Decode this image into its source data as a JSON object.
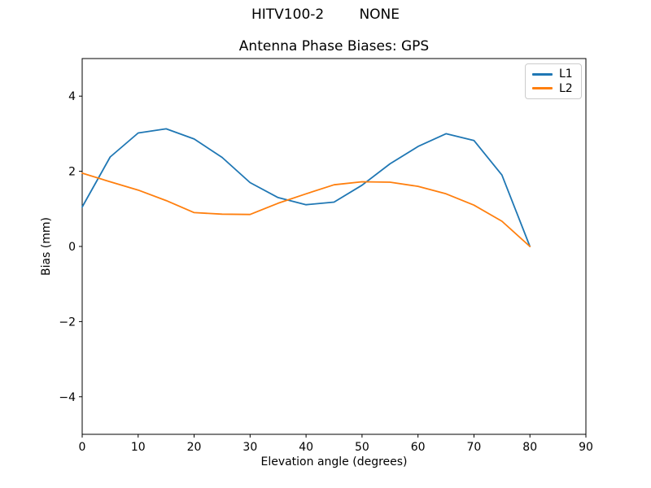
{
  "suptitle": "HITV100-2        NONE",
  "chart_data": {
    "type": "line",
    "title": "Antenna Phase Biases: GPS",
    "xlabel": "Elevation angle (degrees)",
    "ylabel": "Bias (mm)",
    "xlim": [
      0,
      90
    ],
    "ylim": [
      -5,
      5
    ],
    "xticks": [
      0,
      10,
      20,
      30,
      40,
      50,
      60,
      70,
      80,
      90
    ],
    "yticks": [
      -4,
      -2,
      0,
      2,
      4
    ],
    "grid": false,
    "legend_position": "upper right",
    "x": [
      0,
      5,
      10,
      15,
      20,
      25,
      30,
      35,
      40,
      45,
      50,
      55,
      60,
      65,
      70,
      75,
      80
    ],
    "series": [
      {
        "name": "L1",
        "color": "#1f77b4",
        "values": [
          1.05,
          2.38,
          3.02,
          3.13,
          2.86,
          2.37,
          1.7,
          1.3,
          1.11,
          1.18,
          1.63,
          2.2,
          2.66,
          3.0,
          2.82,
          1.9,
          0.0
        ]
      },
      {
        "name": "L2",
        "color": "#ff7f0e",
        "values": [
          1.95,
          1.72,
          1.5,
          1.22,
          0.9,
          0.86,
          0.85,
          1.15,
          1.4,
          1.64,
          1.72,
          1.71,
          1.6,
          1.4,
          1.1,
          0.67,
          0.0
        ]
      }
    ]
  },
  "colors": {
    "axis": "#000000",
    "tick_label": "#000000",
    "legend_border": "#cccccc",
    "background": "#ffffff"
  }
}
